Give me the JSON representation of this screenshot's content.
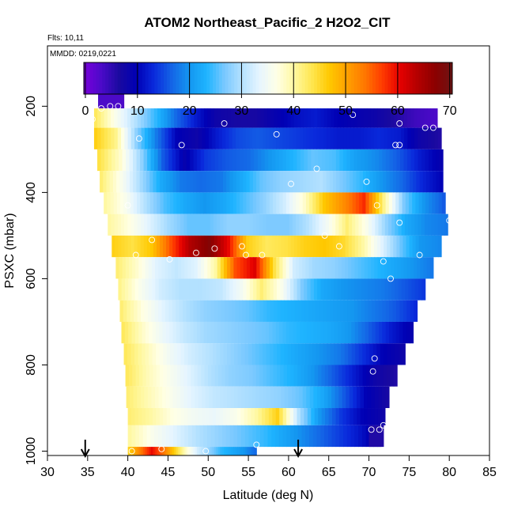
{
  "chart_data": {
    "type": "heatmap",
    "title": "ATOM2 Northeast_Pacific_2 H2O2_CIT",
    "flights_label": "Flts: 10,11",
    "dates_label": "MMDD: 0219,0221",
    "xlabel": "Latitude (deg N)",
    "ylabel": "PSXC (mbar)",
    "xlim": [
      30,
      85
    ],
    "ylim": [
      1010,
      60
    ],
    "x_ticks": [
      30,
      35,
      40,
      45,
      50,
      55,
      60,
      65,
      70,
      75,
      80,
      85
    ],
    "x_tick_labels": [
      "30",
      "35",
      "40",
      "45",
      "50",
      "55",
      "60",
      "65",
      "70",
      "75",
      "80",
      "85"
    ],
    "y_ticks": [
      200,
      400,
      600,
      800,
      1000
    ],
    "y_tick_labels": [
      "200",
      "400",
      "600",
      "800",
      "1000"
    ],
    "colorbar": {
      "min": -0.3,
      "max": 70.5,
      "ticks": [
        0,
        10,
        20,
        30,
        40,
        50,
        60,
        70
      ],
      "tick_labels": [
        "0",
        "10",
        "20",
        "30",
        "40",
        "50",
        "60",
        "70"
      ],
      "colors": [
        "#7a00dc",
        "#4b0ac8",
        "#1a0aa0",
        "#0000b4",
        "#0a2adc",
        "#1464e6",
        "#1496f0",
        "#1eb4ff",
        "#78c8ff",
        "#b4e1ff",
        "#e6f5ff",
        "#ffffe6",
        "#fff8a0",
        "#ffe650",
        "#ffc800",
        "#ffa000",
        "#ff7800",
        "#ff3c00",
        "#e60000",
        "#b40000",
        "#8c0000",
        "#6e1414"
      ]
    },
    "rows": [
      {
        "p0": 170,
        "p1": 205,
        "lat_start": 36.3,
        "lat_end": 39.5,
        "values": [
          3,
          3,
          3
        ]
      },
      {
        "p0": 205,
        "p1": 250,
        "lat_start": 35.8,
        "lat_end": 78.5,
        "values": [
          43,
          36,
          30,
          24,
          17,
          12,
          8,
          7,
          7,
          9,
          11,
          12,
          10,
          9,
          8,
          6,
          4,
          3
        ]
      },
      {
        "p0": 250,
        "p1": 300,
        "lat_start": 35.8,
        "lat_end": 79,
        "values": [
          46,
          41,
          28,
          18,
          10,
          8,
          12,
          15,
          16,
          15,
          14,
          13,
          12,
          12,
          13,
          12,
          8,
          6
        ]
      },
      {
        "p0": 300,
        "p1": 350,
        "lat_start": 36.2,
        "lat_end": 79.2,
        "values": [
          44,
          38,
          28,
          16,
          9,
          14,
          16,
          17,
          20,
          23,
          26,
          25,
          21,
          19,
          16,
          12,
          9
        ]
      },
      {
        "p0": 350,
        "p1": 400,
        "lat_start": 36.5,
        "lat_end": 79.2,
        "values": [
          42,
          36,
          29,
          22,
          18,
          17,
          18,
          22,
          26,
          28,
          29,
          30,
          27,
          24,
          20,
          17,
          13,
          10
        ]
      },
      {
        "p0": 400,
        "p1": 450,
        "lat_start": 37,
        "lat_end": 79.5,
        "values": [
          40,
          36,
          30,
          25,
          22,
          20,
          22,
          25,
          28,
          32,
          38,
          47,
          52,
          58,
          41,
          27,
          20,
          16
        ]
      },
      {
        "p0": 450,
        "p1": 500,
        "lat_start": 37.5,
        "lat_end": 79.8,
        "values": [
          40,
          37,
          33,
          29,
          26,
          26,
          28,
          28,
          27,
          27,
          30,
          35,
          42,
          36,
          28,
          22,
          19,
          18
        ]
      },
      {
        "p0": 500,
        "p1": 550,
        "lat_start": 38,
        "lat_end": 79,
        "values": [
          46,
          44,
          47,
          56,
          64,
          68,
          60,
          46,
          43,
          44,
          46,
          47,
          45,
          40,
          33,
          26,
          20,
          19
        ]
      },
      {
        "p0": 550,
        "p1": 600,
        "lat_start": 38.5,
        "lat_end": 78,
        "values": [
          42,
          38,
          33,
          31,
          33,
          40,
          56,
          61,
          44,
          32,
          29,
          28,
          26,
          24,
          22,
          20,
          18
        ]
      },
      {
        "p0": 600,
        "p1": 650,
        "lat_start": 38.8,
        "lat_end": 77,
        "values": [
          41,
          36,
          32,
          30,
          30,
          31,
          35,
          42,
          36,
          27,
          22,
          20,
          19,
          18,
          16,
          14
        ]
      },
      {
        "p0": 650,
        "p1": 700,
        "lat_start": 39,
        "lat_end": 76,
        "values": [
          42,
          37,
          33,
          30,
          28,
          27,
          26,
          24,
          23,
          22,
          21,
          20,
          18,
          16,
          13
        ]
      },
      {
        "p0": 700,
        "p1": 750,
        "lat_start": 39.2,
        "lat_end": 75.5,
        "values": [
          43,
          38,
          34,
          31,
          29,
          28,
          27,
          26,
          24,
          23,
          22,
          20,
          16,
          12,
          9
        ]
      },
      {
        "p0": 750,
        "p1": 800,
        "lat_start": 39.5,
        "lat_end": 74.5,
        "values": [
          43,
          39,
          35,
          32,
          30,
          28,
          26,
          24,
          22,
          20,
          18,
          14,
          10,
          8
        ]
      },
      {
        "p0": 800,
        "p1": 850,
        "lat_start": 39.7,
        "lat_end": 73.5,
        "values": [
          43,
          39,
          36,
          33,
          30,
          28,
          27,
          25,
          23,
          20,
          16,
          12,
          8,
          6
        ]
      },
      {
        "p0": 850,
        "p1": 900,
        "lat_start": 39.8,
        "lat_end": 72.5,
        "values": [
          42,
          39,
          36,
          33,
          31,
          30,
          29,
          28,
          26,
          22,
          16,
          10,
          7
        ]
      },
      {
        "p0": 900,
        "p1": 940,
        "lat_start": 40,
        "lat_end": 72,
        "values": [
          42,
          40,
          37,
          35,
          34,
          36,
          40,
          46,
          30,
          20,
          14,
          10,
          8
        ]
      },
      {
        "p0": 940,
        "p1": 990,
        "lat_start": 40,
        "lat_end": 71.5,
        "values": [
          40,
          36,
          33,
          30,
          28,
          26,
          24,
          21,
          18,
          15,
          12,
          8
        ]
      },
      {
        "p0": 940,
        "p1": 990,
        "lat_start": 70,
        "lat_end": 71.8,
        "values": [
          6
        ]
      },
      {
        "p0": 990,
        "p1": 1010,
        "lat_start": 40,
        "lat_end": 56,
        "values": [
          46,
          53,
          60,
          54,
          46,
          38,
          32,
          28,
          24,
          22,
          20,
          17
        ]
      }
    ],
    "points": [
      {
        "lat": 35.6,
        "p": 230
      },
      {
        "lat": 36.7,
        "p": 205
      },
      {
        "lat": 37.8,
        "p": 200
      },
      {
        "lat": 38.8,
        "p": 200
      },
      {
        "lat": 52,
        "p": 240
      },
      {
        "lat": 58.5,
        "p": 265
      },
      {
        "lat": 68,
        "p": 220
      },
      {
        "lat": 73.8,
        "p": 240
      },
      {
        "lat": 77,
        "p": 250
      },
      {
        "lat": 78,
        "p": 250
      },
      {
        "lat": 41.4,
        "p": 275
      },
      {
        "lat": 46.7,
        "p": 290
      },
      {
        "lat": 73.3,
        "p": 290
      },
      {
        "lat": 73.8,
        "p": 290
      },
      {
        "lat": 63.5,
        "p": 345
      },
      {
        "lat": 60.3,
        "p": 380
      },
      {
        "lat": 69.7,
        "p": 375
      },
      {
        "lat": 40,
        "p": 430
      },
      {
        "lat": 71,
        "p": 430
      },
      {
        "lat": 73.8,
        "p": 470
      },
      {
        "lat": 80,
        "p": 465
      },
      {
        "lat": 64.5,
        "p": 500
      },
      {
        "lat": 43,
        "p": 510
      },
      {
        "lat": 66.3,
        "p": 525
      },
      {
        "lat": 41,
        "p": 545
      },
      {
        "lat": 45.2,
        "p": 555
      },
      {
        "lat": 48.5,
        "p": 540
      },
      {
        "lat": 50.8,
        "p": 530
      },
      {
        "lat": 54.2,
        "p": 525
      },
      {
        "lat": 54.7,
        "p": 545
      },
      {
        "lat": 56.7,
        "p": 545
      },
      {
        "lat": 71.8,
        "p": 560
      },
      {
        "lat": 76.3,
        "p": 545
      },
      {
        "lat": 72.7,
        "p": 600
      },
      {
        "lat": 70.7,
        "p": 785
      },
      {
        "lat": 70.5,
        "p": 815
      },
      {
        "lat": 70.3,
        "p": 950
      },
      {
        "lat": 71.3,
        "p": 950
      },
      {
        "lat": 71.8,
        "p": 940
      },
      {
        "lat": 40.5,
        "p": 1000
      },
      {
        "lat": 44.2,
        "p": 995
      },
      {
        "lat": 49.7,
        "p": 1000
      },
      {
        "lat": 56,
        "p": 985
      }
    ],
    "arrows_lat": [
      34.7,
      61.2
    ]
  }
}
